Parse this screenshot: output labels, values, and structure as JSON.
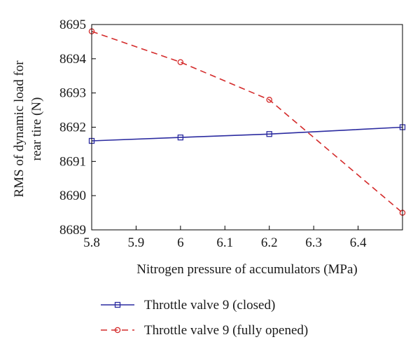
{
  "chart_data": {
    "type": "line",
    "title": "",
    "xlabel": "Nitrogen pressure of accumulators (MPa)",
    "ylabel_lines": [
      "RMS of dynamic load for",
      "rear tire (N)"
    ],
    "xlim": [
      5.8,
      6.5
    ],
    "ylim": [
      8689,
      8695
    ],
    "xticks": [
      5.8,
      5.9,
      6.0,
      6.1,
      6.2,
      6.3,
      6.4
    ],
    "xtick_labels": [
      "5.8",
      "5.9",
      "6",
      "6.1",
      "6.2",
      "6.3",
      "6.4"
    ],
    "yticks": [
      8689,
      8690,
      8691,
      8692,
      8693,
      8694,
      8695
    ],
    "ytick_labels": [
      "8689",
      "8690",
      "8691",
      "8692",
      "8693",
      "8694",
      "8695"
    ],
    "grid": false,
    "legend_position": "bottom",
    "series": [
      {
        "name": "Throttle valve 9 (closed)",
        "x": [
          5.8,
          6.0,
          6.2,
          6.5
        ],
        "y": [
          8691.6,
          8691.7,
          8691.8,
          8692.0
        ],
        "color": "#2b2ba0",
        "marker": "square",
        "line_style": "solid"
      },
      {
        "name": "Throttle valve 9 (fully opened)",
        "x": [
          5.8,
          6.0,
          6.2,
          6.5
        ],
        "y": [
          8694.8,
          8693.9,
          8692.8,
          8689.5
        ],
        "color": "#d42b2b",
        "marker": "circle",
        "line_style": "dashed"
      }
    ]
  }
}
